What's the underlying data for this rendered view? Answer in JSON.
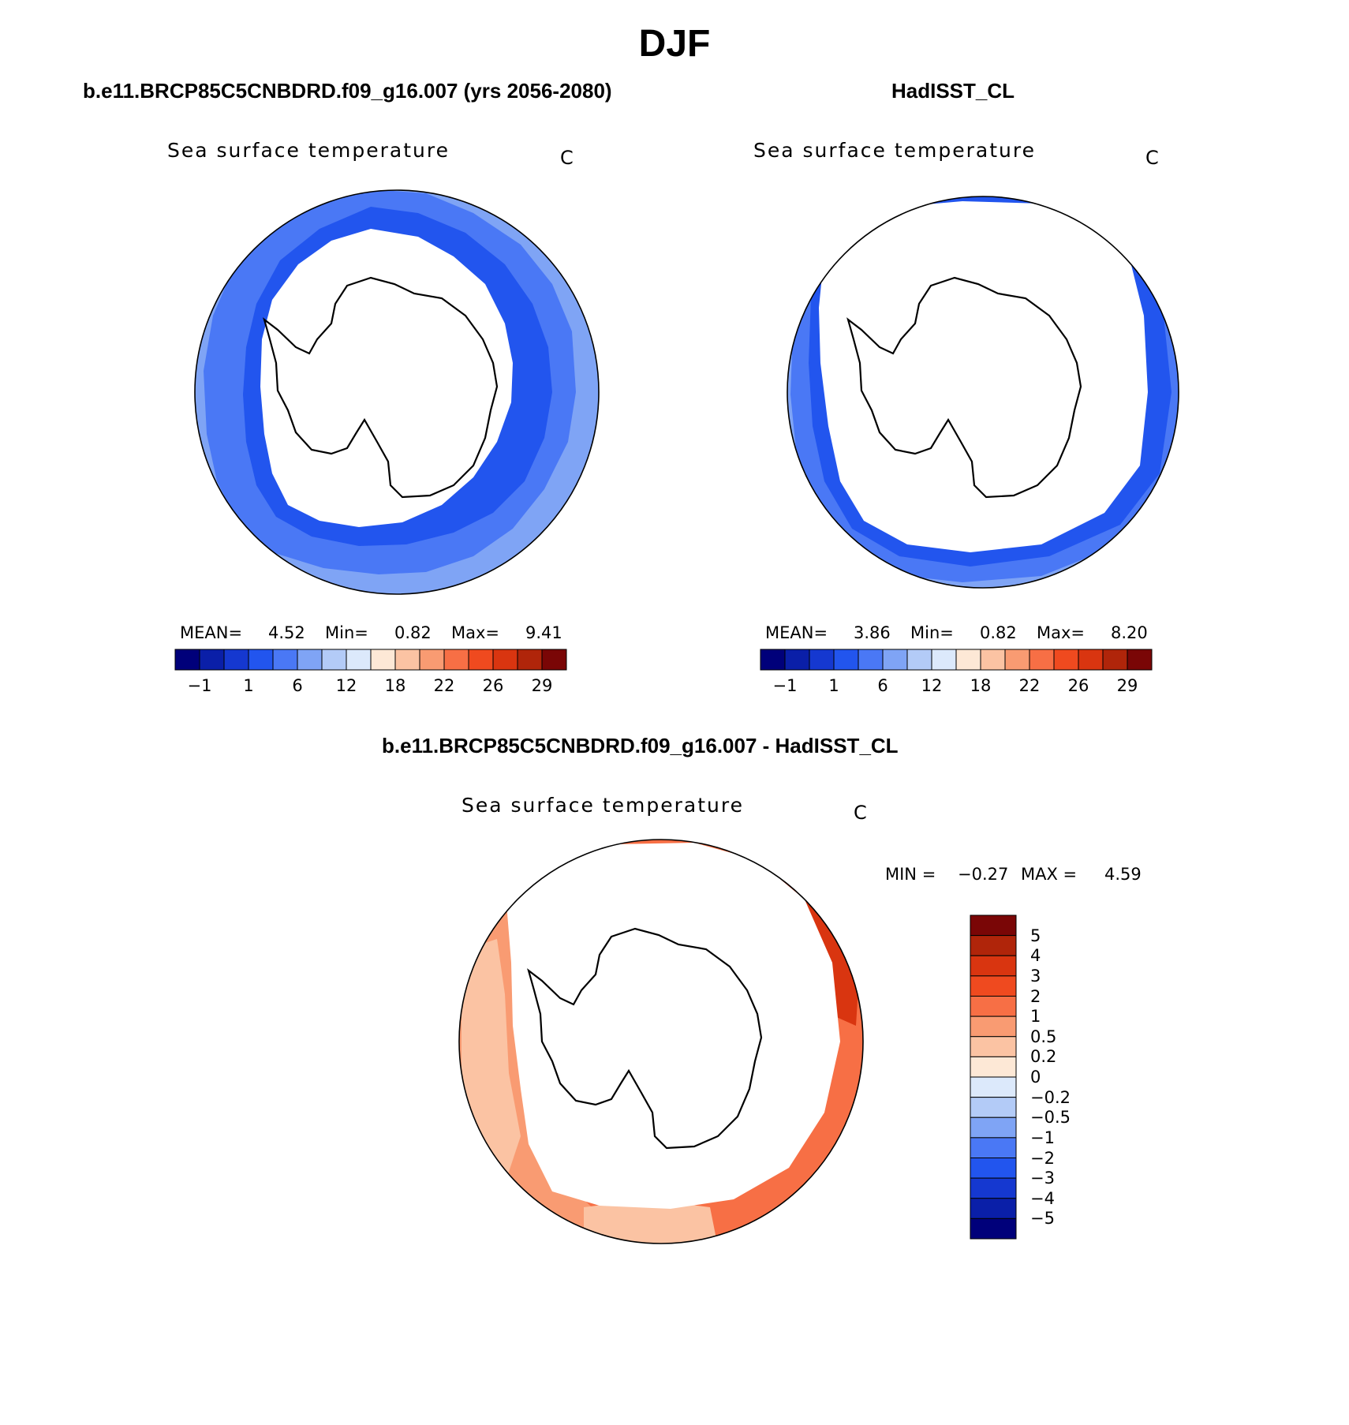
{
  "figure": {
    "title": "DJF",
    "units": "C"
  },
  "panels": [
    {
      "case": "b.e11.BRCP85C5CNBDRD.f09_g16.007 (yrs 2056-2080)",
      "var": "Sea surface temperature",
      "units": "C",
      "mean_label": "MEAN=",
      "mean": "4.52",
      "min_label": "Min=",
      "min": "0.82",
      "max_label": "Max=",
      "max": "9.41",
      "colorbar_ticks": [
        "−1",
        "1",
        "6",
        "12",
        "18",
        "22",
        "26",
        "29"
      ]
    },
    {
      "case": "HadISST_CL",
      "var": "Sea surface temperature",
      "units": "C",
      "mean_label": "MEAN=",
      "mean": "3.86",
      "min_label": "Min=",
      "min": "0.82",
      "max_label": "Max=",
      "max": "8.20",
      "colorbar_ticks": [
        "−1",
        "1",
        "6",
        "12",
        "18",
        "22",
        "26",
        "29"
      ]
    }
  ],
  "difference": {
    "case": "b.e11.BRCP85C5CNBDRD.f09_g16.007 - HadISST_CL",
    "var": "Sea surface temperature",
    "units": "C",
    "min_label": "MIN =",
    "min": "−0.27",
    "max_label": "MAX =",
    "max": "4.59",
    "colorbar_ticks": [
      "5",
      "4",
      "3",
      "2",
      "1",
      "0.5",
      "0.2",
      "0",
      "−0.2",
      "−0.5",
      "−1",
      "−2",
      "−3",
      "−4",
      "−5"
    ]
  },
  "palettes": {
    "abs_colorbar": [
      "#00007a",
      "#0a1fa8",
      "#1538d0",
      "#2255ee",
      "#4a78f5",
      "#7fa4f5",
      "#b3cbf7",
      "#dce9fb",
      "#fde8d6",
      "#fbc3a3",
      "#f99b72",
      "#f76f45",
      "#ef4a1f",
      "#d93510",
      "#b0250a",
      "#7a0606"
    ],
    "diff_colorbar": [
      "#7a0606",
      "#b0250a",
      "#d93510",
      "#ef4a1f",
      "#f76f45",
      "#f99b72",
      "#fbc3a3",
      "#fde8d6",
      "#dce9fb",
      "#b3cbf7",
      "#7fa4f5",
      "#4a78f5",
      "#2255ee",
      "#1538d0",
      "#0a1fa8",
      "#00007a"
    ],
    "model_outer": "#7fa4f5",
    "model_mid": "#4a78f5",
    "model_inner": "#2255ee",
    "obs_outer": "#7fa4f5",
    "obs_mid": "#4a78f5",
    "obs_inner": "#2255ee",
    "diff_outer": "#f99b72",
    "diff_mid": "#f76f45",
    "diff_inner": "#ef4a1f",
    "diff_dark": "#d93510"
  }
}
